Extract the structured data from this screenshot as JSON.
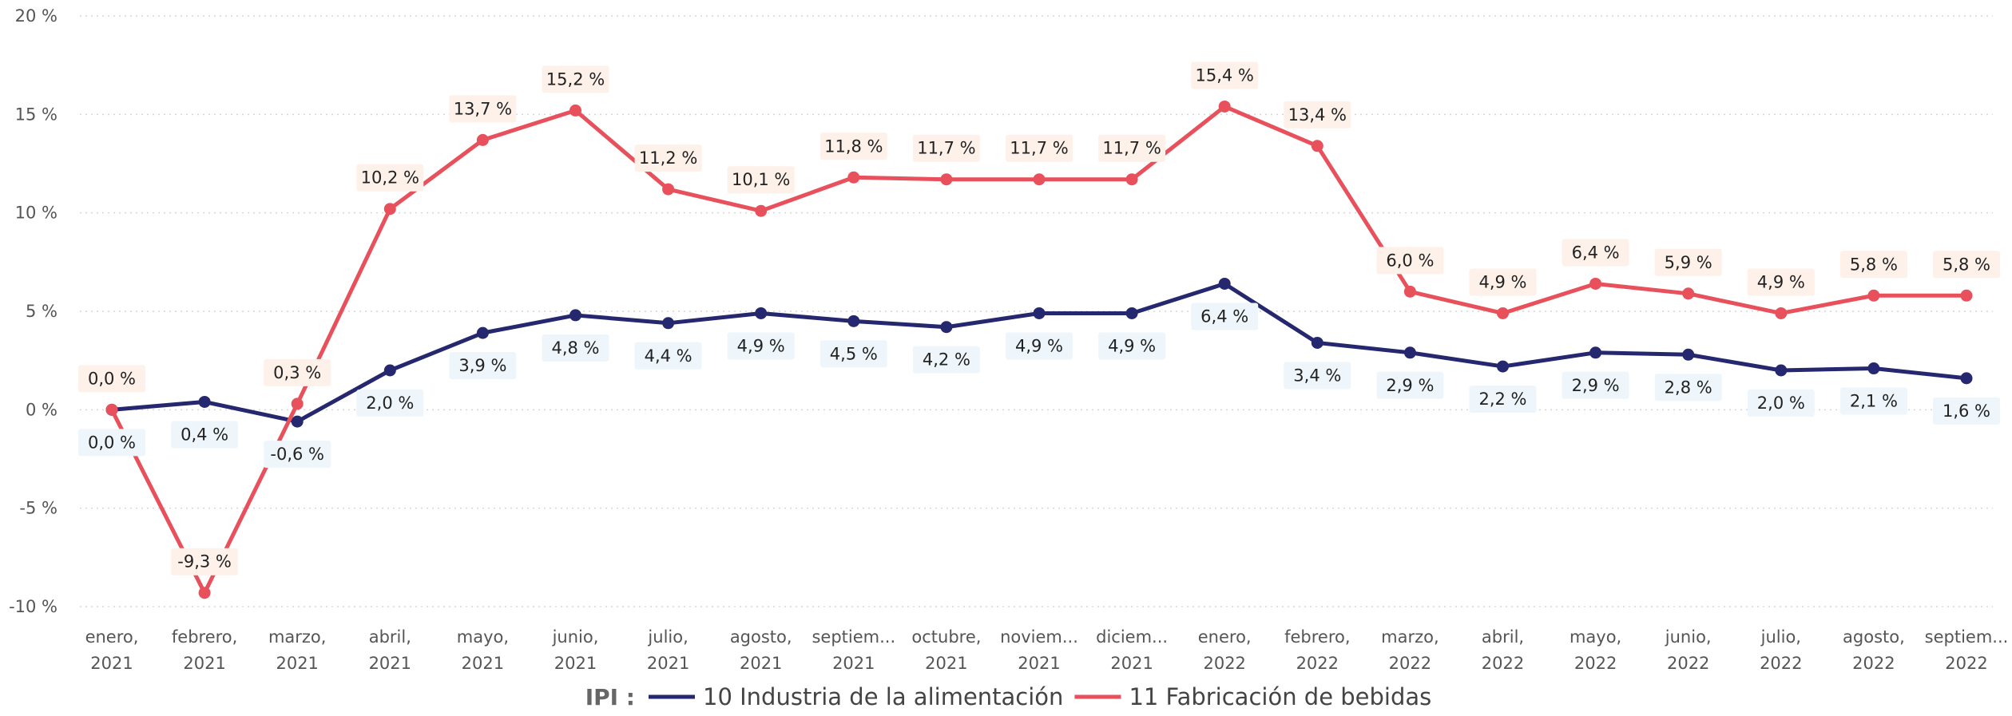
{
  "chart_data": {
    "type": "line",
    "categories": [
      [
        "enero,",
        "2021"
      ],
      [
        "febrero,",
        "2021"
      ],
      [
        "marzo,",
        "2021"
      ],
      [
        "abril,",
        "2021"
      ],
      [
        "mayo,",
        "2021"
      ],
      [
        "junio,",
        "2021"
      ],
      [
        "julio,",
        "2021"
      ],
      [
        "agosto,",
        "2021"
      ],
      [
        "septiem...",
        "2021"
      ],
      [
        "octubre,",
        "2021"
      ],
      [
        "noviem...",
        "2021"
      ],
      [
        "diciem...",
        "2021"
      ],
      [
        "enero,",
        "2022"
      ],
      [
        "febrero,",
        "2022"
      ],
      [
        "marzo,",
        "2022"
      ],
      [
        "abril,",
        "2022"
      ],
      [
        "mayo,",
        "2022"
      ],
      [
        "junio,",
        "2022"
      ],
      [
        "julio,",
        "2022"
      ],
      [
        "agosto,",
        "2022"
      ],
      [
        "septiem...",
        "2022"
      ]
    ],
    "yticks": [
      20,
      15,
      10,
      5,
      0,
      -5,
      -10
    ],
    "ytick_labels": [
      "20 %",
      "15 %",
      "10 %",
      "5 %",
      "0 %",
      "-5 %",
      "-10 %"
    ],
    "ylim": [
      -10,
      20
    ],
    "grid": true,
    "legend_title": "IPI :",
    "legend_position": "bottom-center",
    "series": [
      {
        "name": "10 Industria de la alimentación",
        "color": "#25286e",
        "label_bg": "#eef6fb",
        "label_position": "below",
        "values": [
          0.0,
          0.4,
          -0.6,
          2.0,
          3.9,
          4.8,
          4.4,
          4.9,
          4.5,
          4.2,
          4.9,
          4.9,
          6.4,
          3.4,
          2.9,
          2.2,
          2.9,
          2.8,
          2.0,
          2.1,
          1.6
        ],
        "labels": [
          "0,0 %",
          "0,4 %",
          "-0,6 %",
          "2,0 %",
          "3,9 %",
          "4,8 %",
          "4,4 %",
          "4,9 %",
          "4,5 %",
          "4,2 %",
          "4,9 %",
          "4,9 %",
          "6,4 %",
          "3,4 %",
          "2,9 %",
          "2,2 %",
          "2,9 %",
          "2,8 %",
          "2,0 %",
          "2,1 %",
          "1,6 %"
        ]
      },
      {
        "name": "11 Fabricación de bebidas",
        "color": "#e8505b",
        "label_bg": "#fdf1ea",
        "label_position": "above",
        "values": [
          0.0,
          -9.3,
          0.3,
          10.2,
          13.7,
          15.2,
          11.2,
          10.1,
          11.8,
          11.7,
          11.7,
          11.7,
          15.4,
          13.4,
          6.0,
          4.9,
          6.4,
          5.9,
          4.9,
          5.8,
          5.8
        ],
        "labels": [
          "0,0 %",
          "-9,3 %",
          "0,3 %",
          "10,2 %",
          "13,7 %",
          "15,2 %",
          "11,2 %",
          "10,1 %",
          "11,8 %",
          "11,7 %",
          "11,7 %",
          "11,7 %",
          "15,4 %",
          "13,4 %",
          "6,0 %",
          "4,9 %",
          "6,4 %",
          "5,9 %",
          "4,9 %",
          "5,8 %",
          "5,8 %"
        ]
      }
    ]
  }
}
